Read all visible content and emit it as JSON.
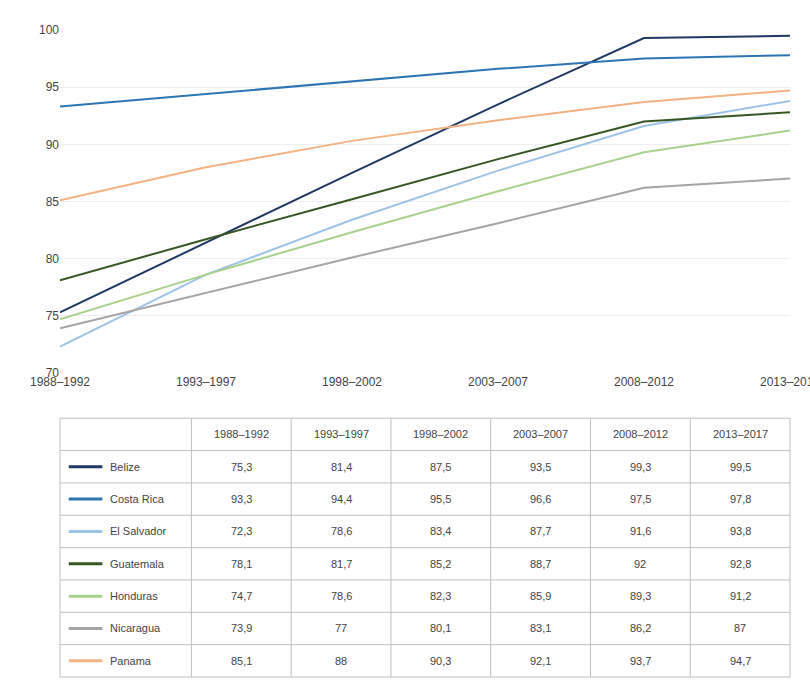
{
  "chart_data": {
    "type": "line",
    "categories": [
      "1988–1992",
      "1993–1997",
      "1998–2002",
      "2003–2007",
      "2008–2012",
      "2013–2017"
    ],
    "series": [
      {
        "name": "Belize",
        "color": "#1F3864",
        "values": [
          75.3,
          81.4,
          87.5,
          93.5,
          99.3,
          99.5
        ],
        "value_labels": [
          "75,3",
          "81,4",
          "87,5",
          "93,5",
          "99,3",
          "99,5"
        ]
      },
      {
        "name": "Costa Rica",
        "color": "#2E75B6",
        "values": [
          93.3,
          94.4,
          95.5,
          96.6,
          97.5,
          97.8
        ],
        "value_labels": [
          "93,3",
          "94,4",
          "95,5",
          "96,6",
          "97,5",
          "97,8"
        ]
      },
      {
        "name": "El Salvador",
        "color": "#9DC3E6",
        "values": [
          72.3,
          78.6,
          83.4,
          87.7,
          91.6,
          93.8
        ],
        "value_labels": [
          "72,3",
          "78,6",
          "83,4",
          "87,7",
          "91,6",
          "93,8"
        ]
      },
      {
        "name": "Guatemala",
        "color": "#375623",
        "values": [
          78.1,
          81.7,
          85.2,
          88.7,
          92.0,
          92.8
        ],
        "value_labels": [
          "78,1",
          "81,7",
          "85,2",
          "88,7",
          "92",
          "92,8"
        ]
      },
      {
        "name": "Honduras",
        "color": "#A9D18E",
        "values": [
          74.7,
          78.6,
          82.3,
          85.9,
          89.3,
          91.2
        ],
        "value_labels": [
          "74,7",
          "78,6",
          "82,3",
          "85,9",
          "89,3",
          "91,2"
        ]
      },
      {
        "name": "Nicaragua",
        "color": "#A5A5A5",
        "values": [
          73.9,
          77.0,
          80.1,
          83.1,
          86.2,
          87.0
        ],
        "value_labels": [
          "73,9",
          "77",
          "80,1",
          "83,1",
          "86,2",
          "87"
        ]
      },
      {
        "name": "Panama",
        "color": "#F4B183",
        "values": [
          85.1,
          88.0,
          90.3,
          92.1,
          93.7,
          94.7
        ],
        "value_labels": [
          "85,1",
          "88",
          "90,3",
          "92,1",
          "93,7",
          "94,7"
        ]
      }
    ],
    "ylim": [
      70,
      100
    ],
    "yticks": [
      70,
      75,
      80,
      85,
      90,
      95,
      100
    ],
    "grid": true
  }
}
